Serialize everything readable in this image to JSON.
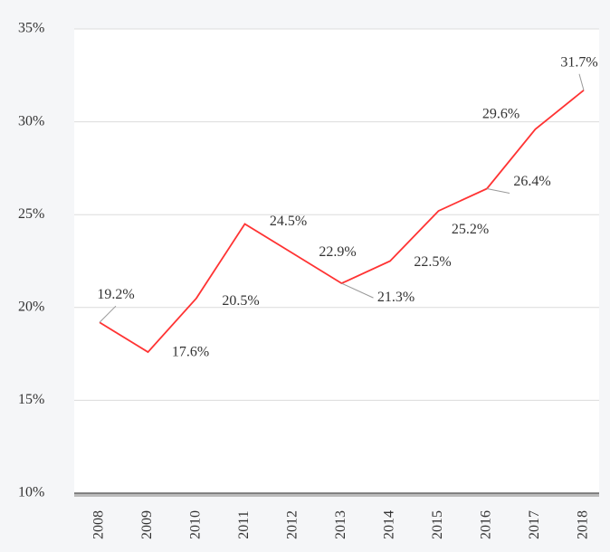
{
  "chart_data": {
    "type": "line",
    "categories": [
      "2008",
      "2009",
      "2010",
      "2011",
      "2012",
      "2013",
      "2014",
      "2015",
      "2016",
      "2017",
      "2018"
    ],
    "series": [
      {
        "color": "#ff3333",
        "values": [
          19.2,
          17.6,
          20.5,
          24.5,
          22.9,
          21.3,
          22.5,
          25.2,
          26.4,
          29.6,
          31.7
        ],
        "value_labels": [
          "19.2%",
          "17.6%",
          "20.5%",
          "24.5%",
          "22.9%",
          "21.3%",
          "22.5%",
          "25.2%",
          "26.4%",
          "29.6%",
          "31.7%"
        ]
      }
    ],
    "ylim": [
      10,
      35
    ],
    "yticks": [
      {
        "value": 10,
        "label": "10%"
      },
      {
        "value": 15,
        "label": "15%"
      },
      {
        "value": 20,
        "label": "20%"
      },
      {
        "value": 25,
        "label": "25%"
      },
      {
        "value": 30,
        "label": "30%"
      },
      {
        "value": 35,
        "label": "35%"
      }
    ],
    "grid": true
  }
}
